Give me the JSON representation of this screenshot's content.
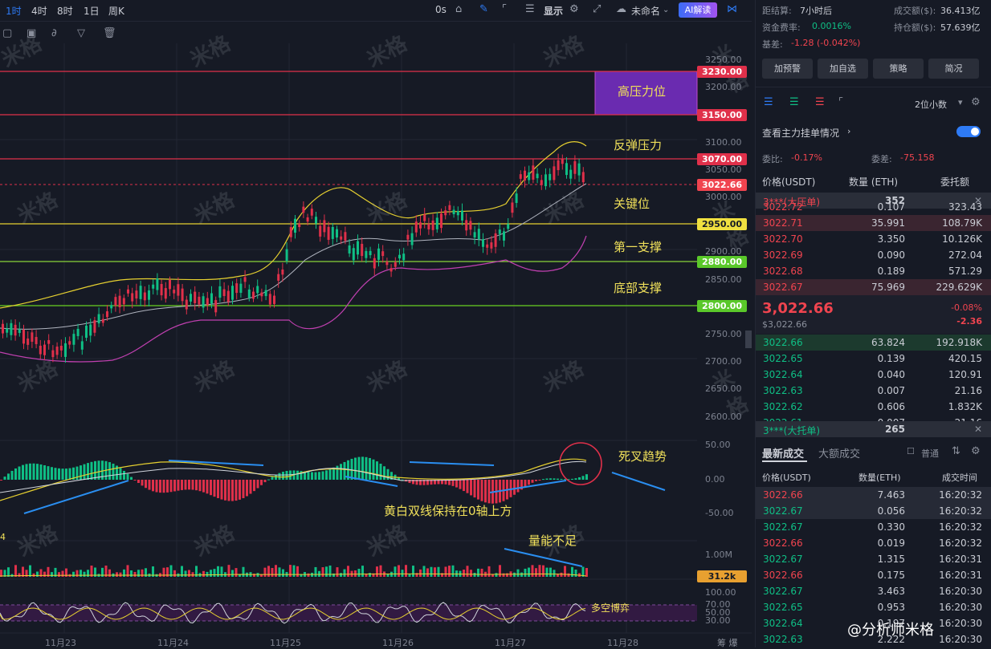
{
  "toolbar": {
    "timeframes": [
      "1时",
      "4时",
      "8时",
      "1日",
      "周K"
    ],
    "countdown": "0s",
    "display_label": "显示",
    "layout_name": "未命名",
    "ai_label": "AI解读"
  },
  "chart": {
    "price_axis": [
      "3250.00",
      "3200.00",
      "3150.00",
      "3100.00",
      "3050.00",
      "3000.00",
      "2950.00",
      "2900.00",
      "2850.00",
      "2800.00",
      "2750.00",
      "2700.00",
      "2650.00",
      "2600.00"
    ],
    "price_tags": [
      {
        "text": "3230.00",
        "kind": "red"
      },
      {
        "text": "3150.00",
        "kind": "red"
      },
      {
        "text": "3070.00",
        "kind": "red"
      },
      {
        "text": "3022.66",
        "kind": "red"
      },
      {
        "text": "2950.00",
        "kind": "yellow"
      },
      {
        "text": "2880.00",
        "kind": "green"
      },
      {
        "text": "2800.00",
        "kind": "green"
      }
    ],
    "zone_label": "高压力位",
    "annotations": [
      "反弹压力",
      "关键位",
      "第一支撑",
      "底部支撑",
      "死叉趋势",
      "黄白双线保持在0轴上方",
      "量能不足",
      "多空博弈"
    ],
    "macd_axis": [
      "50.00",
      "0.00",
      "-50.00"
    ],
    "volume_axis": "1.00M",
    "volume_tag": "31.2k",
    "stoch_axis": [
      "100.00",
      "70.00",
      "50.00",
      "30.00"
    ],
    "x_labels": [
      "11月23",
      "11月24",
      "11月25",
      "11月26",
      "11月27",
      "11月28"
    ],
    "corner_text": "4",
    "footer": "@分析师米格",
    "corner_right": "筹 爆",
    "watermark": "米格"
  },
  "panel": {
    "settle_label": "距结算:",
    "settle_value": "7小时后",
    "volume_label": "成交额($):",
    "volume_value": "36.413亿",
    "funding_label": "资金费率:",
    "funding_value": "0.0016%",
    "oi_label": "持仓额($):",
    "oi_value": "57.639亿",
    "basis_label": "基差:",
    "basis_value": "-1.28 (-0.042%)",
    "buttons": [
      "加预警",
      "加自选",
      "策略",
      "简况"
    ],
    "precision": "2位小数",
    "main_orders": "查看主力挂单情况",
    "ratio_label": "委比:",
    "ratio_value": "-0.17%",
    "diff_label": "委差:",
    "diff_value": "-75.158",
    "ob_headers": [
      "价格(USDT)",
      "数量 (ETH)",
      "委托额"
    ],
    "ask_banner": {
      "label": "3***(大压单)",
      "qty": "352"
    },
    "asks": [
      {
        "p": "3022.72",
        "q": "0.107",
        "a": "323.43"
      },
      {
        "p": "3022.71",
        "q": "35.991",
        "a": "108.79K"
      },
      {
        "p": "3022.70",
        "q": "3.350",
        "a": "10.126K"
      },
      {
        "p": "3022.69",
        "q": "0.090",
        "a": "272.04"
      },
      {
        "p": "3022.68",
        "q": "0.189",
        "a": "571.29"
      },
      {
        "p": "3022.67",
        "q": "75.969",
        "a": "229.629K"
      }
    ],
    "last_price": "3,022.66",
    "last_usd": "$3,022.66",
    "change_pct": "-0.08%",
    "change_abs": "-2.36",
    "bids": [
      {
        "p": "3022.66",
        "q": "63.824",
        "a": "192.918K"
      },
      {
        "p": "3022.65",
        "q": "0.139",
        "a": "420.15"
      },
      {
        "p": "3022.64",
        "q": "0.040",
        "a": "120.91"
      },
      {
        "p": "3022.63",
        "q": "0.007",
        "a": "21.16"
      },
      {
        "p": "3022.62",
        "q": "0.606",
        "a": "1.832K"
      },
      {
        "p": "3022.61",
        "q": "0.007",
        "a": "21.16"
      }
    ],
    "bid_banner": {
      "label": "3***(大托单)",
      "qty": "265"
    },
    "trade_tabs": [
      "最新成交",
      "大额成交"
    ],
    "normal_label": "普通",
    "trade_headers": [
      "价格(USDT)",
      "数量(ETH)",
      "成交时间"
    ],
    "trades": [
      {
        "p": "3022.66",
        "q": "7.463",
        "t": "16:20:32",
        "side": "red"
      },
      {
        "p": "3022.67",
        "q": "0.056",
        "t": "16:20:32",
        "side": "green"
      },
      {
        "p": "3022.67",
        "q": "0.330",
        "t": "16:20:32",
        "side": "green"
      },
      {
        "p": "3022.66",
        "q": "0.019",
        "t": "16:20:32",
        "side": "red"
      },
      {
        "p": "3022.67",
        "q": "1.315",
        "t": "16:20:31",
        "side": "green"
      },
      {
        "p": "3022.66",
        "q": "0.175",
        "t": "16:20:31",
        "side": "red"
      },
      {
        "p": "3022.67",
        "q": "3.463",
        "t": "16:20:30",
        "side": "green"
      },
      {
        "p": "3022.65",
        "q": "0.953",
        "t": "16:20:30",
        "side": "green"
      },
      {
        "p": "3022.64",
        "q": "0.197",
        "t": "16:20:30",
        "side": "green"
      },
      {
        "p": "3022.63",
        "q": "2.222",
        "t": "16:20:30",
        "side": "green"
      }
    ]
  }
}
